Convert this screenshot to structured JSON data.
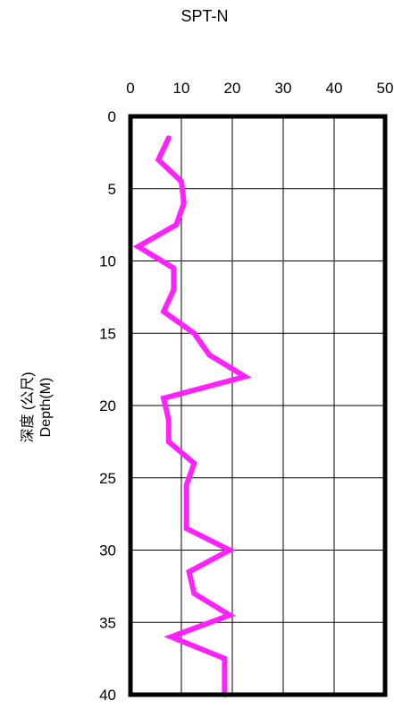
{
  "chart_data": {
    "type": "line",
    "title": "SPT-N",
    "ylabel_zh": "深度 (公尺)",
    "ylabel_en": "Depth(M)",
    "xlim": [
      0,
      50
    ],
    "ylim": [
      0,
      40
    ],
    "y_inverted": true,
    "x_axis_position": "top",
    "xticks": [
      0,
      10,
      20,
      30,
      40,
      50
    ],
    "yticks": [
      0,
      5,
      10,
      15,
      20,
      25,
      30,
      35,
      40
    ],
    "grid": true,
    "line_color": "#ff22ff",
    "series": [
      {
        "points": [
          {
            "n": 7.5,
            "depth": 1.5
          },
          {
            "n": 5.5,
            "depth": 3.0
          },
          {
            "n": 10.0,
            "depth": 4.5
          },
          {
            "n": 10.5,
            "depth": 6.0
          },
          {
            "n": 9.0,
            "depth": 7.5
          },
          {
            "n": 1.5,
            "depth": 9.0
          },
          {
            "n": 8.5,
            "depth": 10.5
          },
          {
            "n": 8.5,
            "depth": 12.0
          },
          {
            "n": 6.5,
            "depth": 13.5
          },
          {
            "n": 12.5,
            "depth": 15.0
          },
          {
            "n": 15.5,
            "depth": 16.5
          },
          {
            "n": 22.5,
            "depth": 18.0
          },
          {
            "n": 6.5,
            "depth": 19.5
          },
          {
            "n": 7.5,
            "depth": 21.0
          },
          {
            "n": 7.5,
            "depth": 22.5
          },
          {
            "n": 12.5,
            "depth": 24.0
          },
          {
            "n": 11.0,
            "depth": 25.5
          },
          {
            "n": 11.0,
            "depth": 27.0
          },
          {
            "n": 11.0,
            "depth": 28.5
          },
          {
            "n": 19.5,
            "depth": 30.0
          },
          {
            "n": 11.5,
            "depth": 31.5
          },
          {
            "n": 12.5,
            "depth": 33.0
          },
          {
            "n": 19.5,
            "depth": 34.5
          },
          {
            "n": 8.0,
            "depth": 36.0
          },
          {
            "n": 18.5,
            "depth": 37.5
          },
          {
            "n": 18.5,
            "depth": 39.0
          },
          {
            "n": 18.5,
            "depth": 40.0
          }
        ]
      }
    ]
  }
}
